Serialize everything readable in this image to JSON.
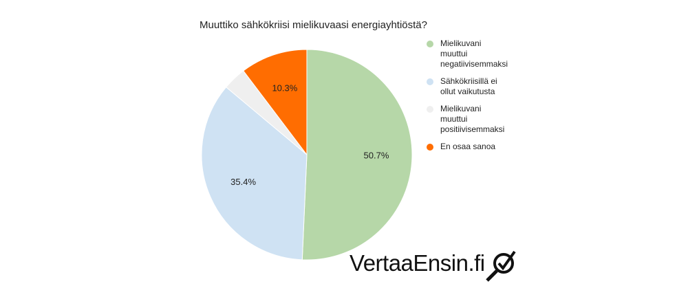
{
  "chart_data": {
    "type": "pie",
    "title": "Muuttiko sähkökriisi mielikuvaasi energiayhtiöstä?",
    "categories": [
      "Mielikuvani muuttui negatiivisemmaksi",
      "Sähkökriisillä ei ollut vaikutusta",
      "Mielikuvani muuttui positiivisemmaksi",
      "En osaa sanoa"
    ],
    "values": [
      50.7,
      35.4,
      3.6,
      10.3
    ],
    "value_labels": [
      "50.7%",
      "35.4%",
      null,
      "10.3%"
    ],
    "colors": [
      "#b6d7a8",
      "#cfe2f3",
      "#efefef",
      "#ff6d01"
    ],
    "legend": "right"
  },
  "logo": "VertaaEnsin.fi"
}
